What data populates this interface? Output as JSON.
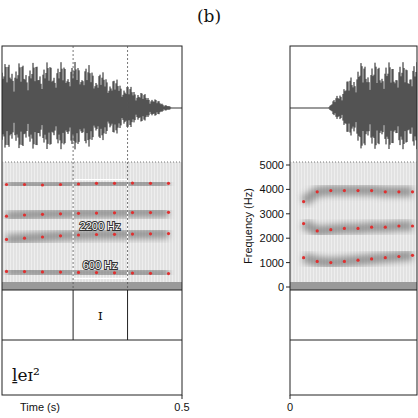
{
  "figure_label": "(b)",
  "chart_data": [
    {
      "type": "spectrogram",
      "xlabel": "Time (s)",
      "xlim": [
        0.1,
        0.5
      ],
      "xticks": [
        0.5
      ],
      "ylim": [
        0,
        5000
      ],
      "tick_labels": "x",
      "highlight": {
        "x": [
          0.258,
          0.379
        ],
        "y": [
          350,
          4400
        ]
      },
      "annotations": [
        {
          "text": "2200 Hz",
          "x": 0.318,
          "y": 2200
        },
        {
          "text": "600 Hz",
          "x": 0.318,
          "y": 600
        }
      ],
      "segments": [
        {
          "start": 0.258,
          "end": 0.379,
          "label": "ɪ"
        }
      ],
      "transcription": "ḻeɪ²",
      "series": [
        {
          "color": "#e03030",
          "marker": "dot",
          "x": [
            0.11,
            0.15,
            0.19,
            0.23,
            0.27,
            0.31,
            0.35,
            0.39,
            0.43,
            0.47
          ],
          "values": [
            640,
            630,
            620,
            610,
            600,
            590,
            580,
            570,
            560,
            550
          ]
        },
        {
          "color": "#e03030",
          "marker": "dot",
          "x": [
            0.11,
            0.15,
            0.19,
            0.23,
            0.27,
            0.31,
            0.35,
            0.39,
            0.43,
            0.47
          ],
          "values": [
            1950,
            2000,
            2050,
            2100,
            2130,
            2150,
            2160,
            2170,
            2180,
            2190
          ]
        },
        {
          "color": "#e03030",
          "marker": "dot",
          "x": [
            0.11,
            0.15,
            0.19,
            0.23,
            0.27,
            0.31,
            0.35,
            0.39,
            0.43,
            0.47
          ],
          "values": [
            2900,
            2950,
            2980,
            3000,
            3020,
            3030,
            3040,
            3050,
            3050,
            3060
          ]
        },
        {
          "color": "#e03030",
          "marker": "dot",
          "x": [
            0.11,
            0.15,
            0.19,
            0.23,
            0.27,
            0.31,
            0.35,
            0.39,
            0.43,
            0.47
          ],
          "values": [
            4200,
            4200,
            4180,
            4200,
            4220,
            4250,
            4250,
            4260,
            4250,
            4250
          ]
        }
      ]
    },
    {
      "type": "spectrogram",
      "ylabel": "Frequency (Hz)",
      "xlim": [
        0,
        0.28
      ],
      "xticks": [
        0
      ],
      "ylim": [
        0,
        5000
      ],
      "yticks": [
        0,
        1000,
        2000,
        3000,
        4000,
        5000
      ],
      "tick_labels": true,
      "series": [
        {
          "color": "#e03030",
          "marker": "dot",
          "x": [
            0.03,
            0.06,
            0.09,
            0.12,
            0.15,
            0.18,
            0.21,
            0.24,
            0.27
          ],
          "values": [
            1200,
            1050,
            1000,
            1050,
            1100,
            1150,
            1200,
            1250,
            1300
          ]
        },
        {
          "color": "#e03030",
          "marker": "dot",
          "x": [
            0.03,
            0.06,
            0.09,
            0.12,
            0.15,
            0.18,
            0.21,
            0.24,
            0.27
          ],
          "values": [
            2600,
            2300,
            2350,
            2400,
            2400,
            2450,
            2450,
            2500,
            2500
          ]
        },
        {
          "color": "#e03030",
          "marker": "dot",
          "x": [
            0.03,
            0.06,
            0.09,
            0.12,
            0.15,
            0.18,
            0.21,
            0.24,
            0.27
          ],
          "values": [
            3500,
            3900,
            3950,
            3950,
            3950,
            3950,
            3900,
            3900,
            3900
          ]
        }
      ]
    }
  ]
}
